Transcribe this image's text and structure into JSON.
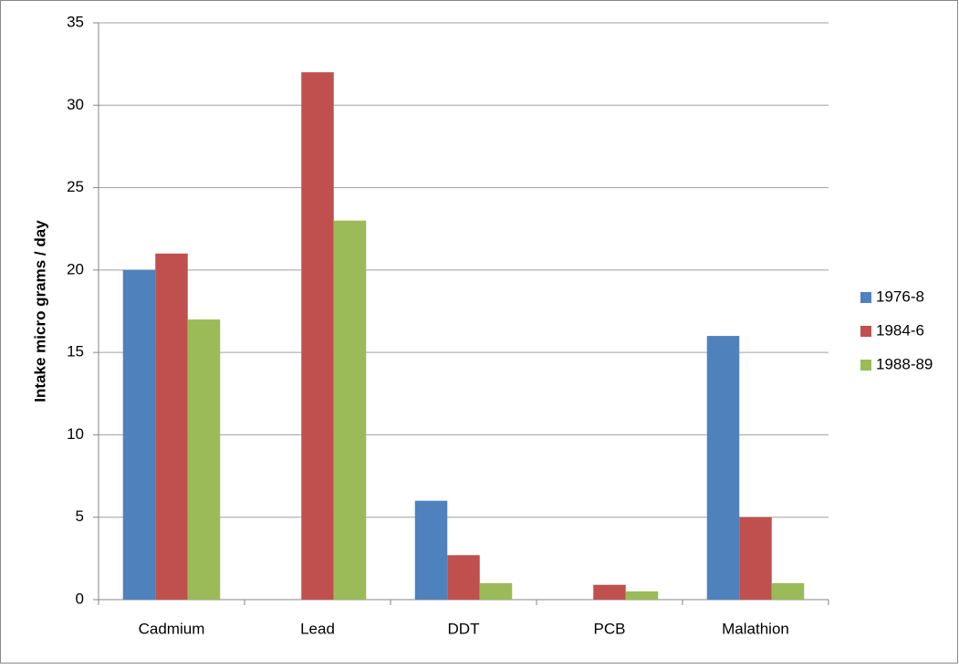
{
  "chart_data": {
    "type": "bar",
    "y_label": "Intake micro grams / day",
    "categories": [
      "Cadmium",
      "Lead",
      "DDT",
      "PCB",
      "Malathion"
    ],
    "series": [
      {
        "name": "1976-8",
        "color": "#4f81bd",
        "values": [
          20,
          null,
          6,
          null,
          16
        ]
      },
      {
        "name": "1984-6",
        "color": "#c0504d",
        "values": [
          21,
          32,
          2.7,
          0.9,
          5
        ]
      },
      {
        "name": "1988-89",
        "color": "#9bbb59",
        "values": [
          17,
          23,
          1,
          0.5,
          1
        ]
      }
    ],
    "ylim": [
      0,
      35
    ],
    "yticks": [
      0,
      5,
      10,
      15,
      20,
      25,
      30,
      35
    ],
    "grid": true,
    "legend": "right"
  }
}
